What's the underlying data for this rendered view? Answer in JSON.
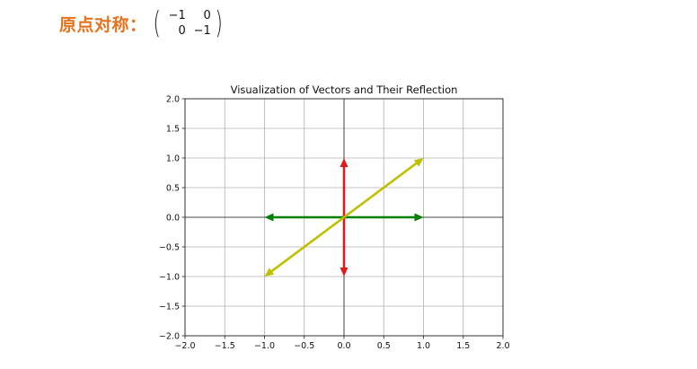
{
  "header": {
    "label": "原点对称：",
    "matrix": [
      [
        "−1",
        "0"
      ],
      [
        "0",
        "−1"
      ]
    ]
  },
  "chart_data": {
    "type": "quiver",
    "title": "Visualization of Vectors and Their Reflection",
    "xlabel": "",
    "ylabel": "",
    "xlim": [
      -2.0,
      2.0
    ],
    "ylim": [
      -2.0,
      2.0
    ],
    "grid": true,
    "xticks": [
      -2.0,
      -1.5,
      -1.0,
      -0.5,
      0.0,
      0.5,
      1.0,
      1.5,
      2.0
    ],
    "yticks": [
      -2.0,
      -1.5,
      -1.0,
      -0.5,
      0.0,
      0.5,
      1.0,
      1.5,
      2.0
    ],
    "xtick_labels": [
      "−2.0",
      "−1.5",
      "−1.0",
      "−0.5",
      "0.0",
      "0.5",
      "1.0",
      "1.5",
      "2.0"
    ],
    "ytick_labels": [
      "−2.0",
      "−1.5",
      "−1.0",
      "−0.5",
      "0.0",
      "0.5",
      "1.0",
      "1.5",
      "2.0"
    ],
    "vectors": [
      {
        "x0": 0,
        "y0": 0,
        "x1": 1,
        "y1": 0,
        "color": "#008000"
      },
      {
        "x0": 0,
        "y0": 0,
        "x1": -1,
        "y1": 0,
        "color": "#008000"
      },
      {
        "x0": 0,
        "y0": 0,
        "x1": 0,
        "y1": 1,
        "color": "#e01a1a"
      },
      {
        "x0": 0,
        "y0": 0,
        "x1": 0,
        "y1": -1,
        "color": "#e01a1a"
      },
      {
        "x0": 0,
        "y0": 0,
        "x1": 1,
        "y1": 1,
        "color": "#bfbf00"
      },
      {
        "x0": 0,
        "y0": 0,
        "x1": -1,
        "y1": -1,
        "color": "#bfbf00"
      }
    ]
  }
}
